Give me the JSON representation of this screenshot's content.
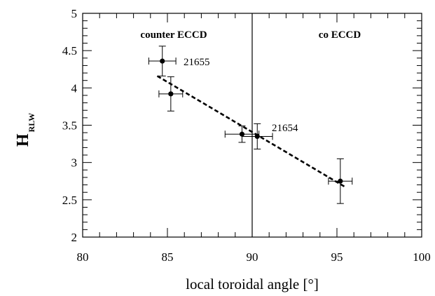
{
  "chart_data": {
    "type": "scatter",
    "title": "",
    "xlabel": "local toroidal angle [°]",
    "ylabel_main": "H",
    "ylabel_sub": "RLW",
    "xlim": [
      80,
      100
    ],
    "ylim": [
      2,
      5
    ],
    "x_ticks": [
      "80",
      "85",
      "90",
      "95",
      "100"
    ],
    "y_ticks": [
      "2",
      "2.5",
      "3",
      "3.5",
      "4",
      "4.5",
      "5"
    ],
    "grid": false,
    "points": [
      {
        "x": 84.7,
        "y": 4.36,
        "xerr": 0.8,
        "yerr": 0.2
      },
      {
        "x": 85.2,
        "y": 3.92,
        "xerr": 0.7,
        "yerr": 0.23
      },
      {
        "x": 89.4,
        "y": 3.38,
        "xerr": 1.0,
        "yerr": 0.11
      },
      {
        "x": 90.3,
        "y": 3.35,
        "xerr": 0.9,
        "yerr": 0.17
      },
      {
        "x": 95.2,
        "y": 2.75,
        "xerr": 0.7,
        "yerr": 0.3
      }
    ],
    "fit_line": {
      "x": [
        84.4,
        95.5
      ],
      "y": [
        4.16,
        2.67
      ]
    },
    "vertical_line": {
      "x": 90
    },
    "annotations": {
      "counter_label": "counter ECCD",
      "co_label": "co ECCD",
      "shot_a": "21655",
      "shot_b": "21654"
    }
  }
}
